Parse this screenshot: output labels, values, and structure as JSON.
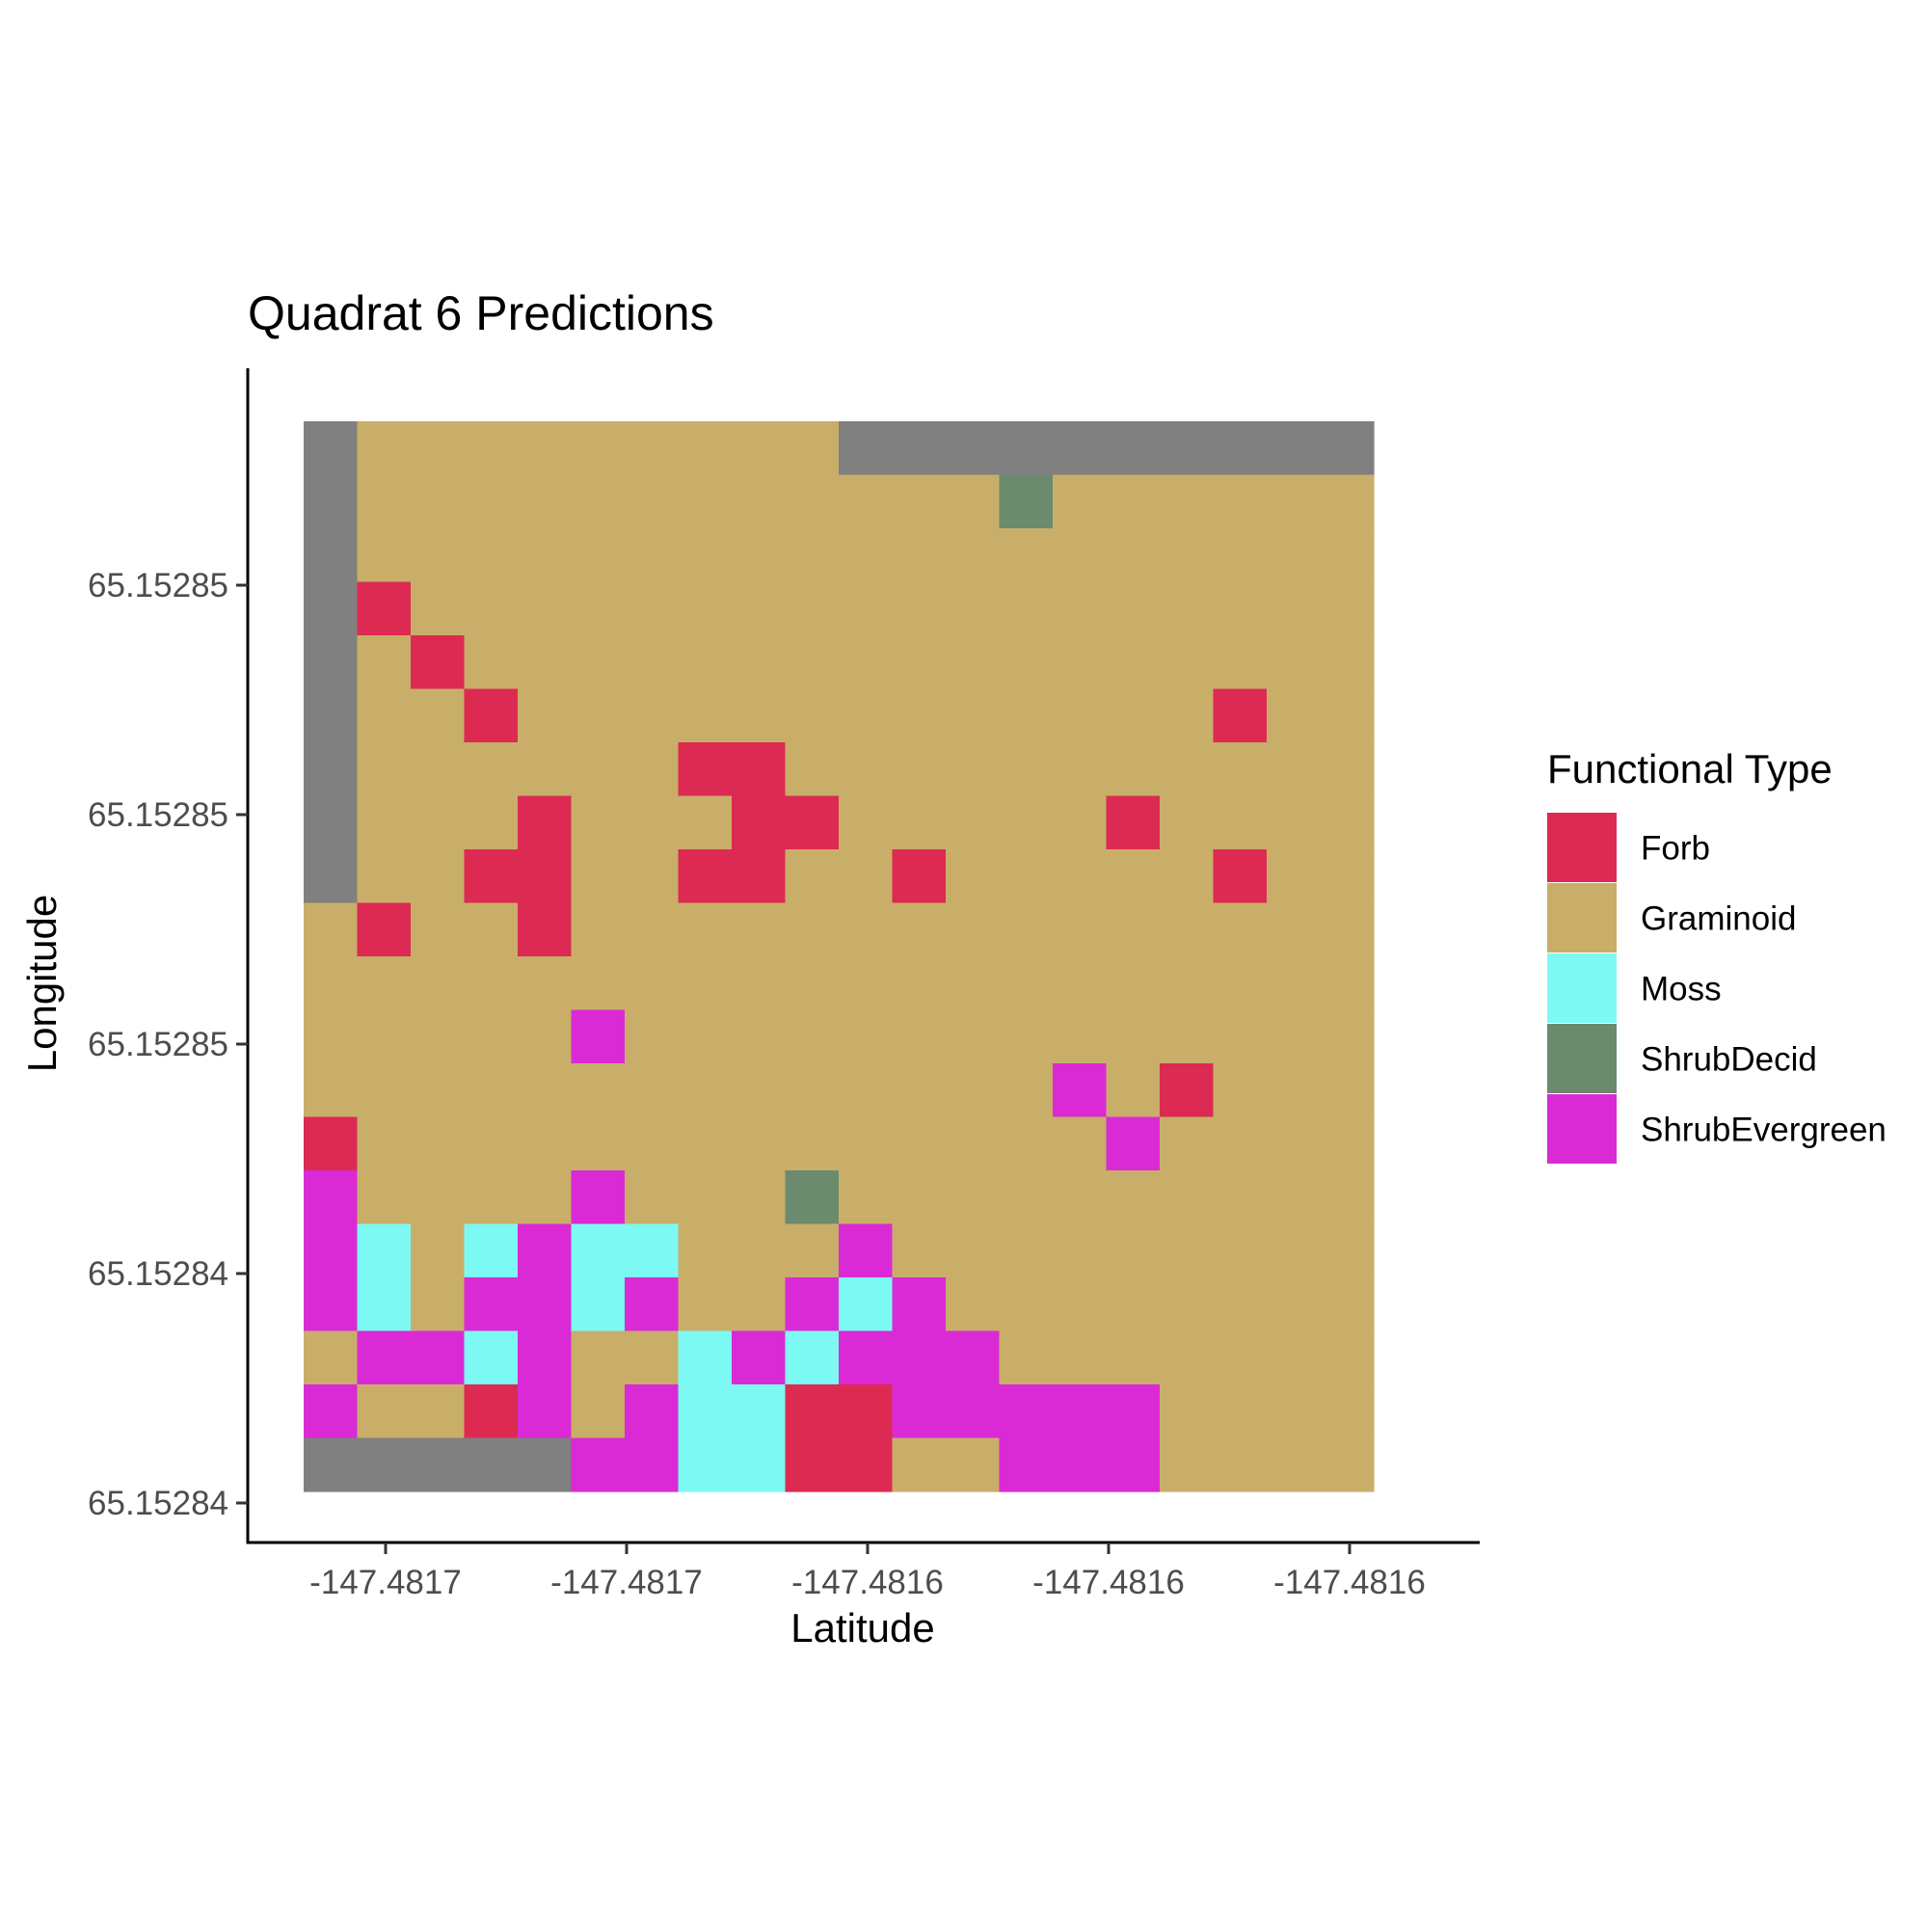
{
  "chart_data": {
    "type": "heatmap",
    "title": "Quadrat 6 Predictions",
    "xlabel": "Latitude",
    "ylabel": "Longitude",
    "x_tick_labels": [
      "-147.4817",
      "-147.4817",
      "-147.4816",
      "-147.4816",
      "-147.4816"
    ],
    "y_tick_labels": [
      "65.15285",
      "65.15285",
      "65.15285",
      "65.15284",
      "65.15284"
    ],
    "legend": {
      "title": "Functional Type",
      "placement": "right",
      "items": [
        {
          "key": "F",
          "label": "Forb",
          "color": "#DC2A52"
        },
        {
          "key": "G",
          "label": "Graminoid",
          "color": "#C9AE6A"
        },
        {
          "key": "M",
          "label": "Moss",
          "color": "#7DF9F4"
        },
        {
          "key": "D",
          "label": "ShrubDecid",
          "color": "#6C8A6E"
        },
        {
          "key": "E",
          "label": "ShrubEvergreen",
          "color": "#DA2AD5"
        }
      ]
    },
    "unlabeled_color": "#808080",
    "grid_rows": [
      "XGGGGGGGGGXXXXXXXXXX",
      "XGGGGGGGGGGGGDGGGGGG",
      "XGGGGGGGGGGGGGGGGGGG",
      "XFGGGGGGGGGGGGGGGGGG",
      "XGFGGGGGGGGGGGGGGGGG",
      "XGGFGGGGGGGGGGGGGFGG",
      "XGGGGGGFFGGGGGGGGGGG",
      "XGGGFGGGFFGGGGGFGGGG",
      "XGGFFGGFFGGFGGGGGFGG",
      "GFGGFGGGGGGGGGGGGGGG",
      "GGGGGGGGGGGGGGGGGGGG",
      "GGGGGEGGGGGGGGGGGGGG",
      "GGGGGGGGGGGGGGEGFGGG",
      "FGGGGGGGGGGGGGGEGGGG",
      "EGGGGEGGGDGGGGGGGGGG",
      "EMGMEMMGGGEGGGGGGGGG",
      "EMGEEMEGGEMEGGGGGGGG",
      "GEEMEGGMEMEEEGGGGGGG",
      "EGGFEGEMMFFEEEEEGGGG",
      "XXXXXEEMMFFGGEEEGGGG"
    ]
  }
}
